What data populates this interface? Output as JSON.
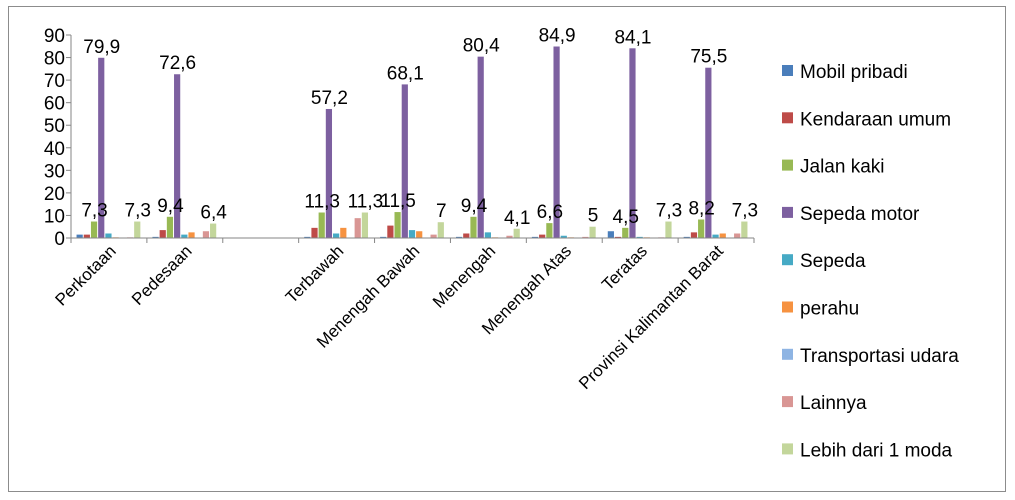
{
  "chart_data": {
    "type": "bar",
    "title": "",
    "xlabel": "",
    "ylabel": "",
    "ylim": [
      0,
      90
    ],
    "yticks": [
      0,
      10,
      20,
      30,
      40,
      50,
      60,
      70,
      80,
      90
    ],
    "grid": false,
    "legend_position": "right",
    "categories": [
      "Perkotaan",
      "Pedesaan",
      "",
      "Terbawah",
      "Menengah Bawah",
      "Menengah",
      "Menengah Atas",
      "Teratas",
      "Provinsi Kalimantan Barat"
    ],
    "series": [
      {
        "name": "Mobil pribadi",
        "color": "#4a7ebb",
        "values": [
          1.5,
          0.5,
          null,
          0.5,
          0.5,
          0.5,
          0.5,
          3.0,
          0.5
        ]
      },
      {
        "name": "Kendaraan umum",
        "color": "#be4b48",
        "values": [
          1.5,
          3.5,
          null,
          4.5,
          5.5,
          2.0,
          1.5,
          0.5,
          2.5
        ]
      },
      {
        "name": "Jalan kaki",
        "color": "#98b954",
        "values": [
          7.3,
          9.4,
          null,
          11.3,
          11.5,
          9.4,
          6.6,
          4.5,
          8.2
        ]
      },
      {
        "name": "Sepeda motor",
        "color": "#7d60a0",
        "values": [
          79.9,
          72.6,
          null,
          57.2,
          68.1,
          80.4,
          84.9,
          84.1,
          75.5
        ]
      },
      {
        "name": "Sepeda",
        "color": "#46aac5",
        "values": [
          2.0,
          1.5,
          null,
          2.0,
          3.5,
          2.5,
          1.0,
          0.5,
          1.5
        ]
      },
      {
        "name": "perahu",
        "color": "#f69240",
        "values": [
          0.3,
          2.5,
          null,
          4.5,
          3.0,
          0.3,
          0.3,
          0.3,
          2.0
        ]
      },
      {
        "name": "Transportasi udara",
        "color": "#8eb4e3",
        "values": [
          0.2,
          0.2,
          null,
          0.2,
          0.2,
          0.2,
          0.2,
          0.2,
          0.2
        ]
      },
      {
        "name": "Lainnya",
        "color": "#d99694",
        "values": [
          0.3,
          3.0,
          null,
          8.8,
          1.5,
          1.0,
          0.5,
          0.3,
          2.0
        ]
      },
      {
        "name": "Lebih dari 1 moda",
        "color": "#c3d69b",
        "values": [
          7.3,
          6.4,
          null,
          11.3,
          7.0,
          4.1,
          5.0,
          7.3,
          7.3
        ]
      }
    ],
    "data_labels": [
      {
        "category": 0,
        "series": 3,
        "text": "79,9"
      },
      {
        "category": 0,
        "series": 2,
        "text": "7,3"
      },
      {
        "category": 0,
        "series": 8,
        "text": "7,3"
      },
      {
        "category": 1,
        "series": 3,
        "text": "72,6"
      },
      {
        "category": 1,
        "series": 2,
        "text": "9,4"
      },
      {
        "category": 1,
        "series": 8,
        "text": "6,4"
      },
      {
        "category": 3,
        "series": 3,
        "text": "57,2"
      },
      {
        "category": 3,
        "series": 2,
        "text": "11,3"
      },
      {
        "category": 3,
        "series": 8,
        "text": "11,3"
      },
      {
        "category": 4,
        "series": 3,
        "text": "68,1"
      },
      {
        "category": 4,
        "series": 2,
        "text": "11,5"
      },
      {
        "category": 4,
        "series": 8,
        "text": "7"
      },
      {
        "category": 5,
        "series": 3,
        "text": "80,4"
      },
      {
        "category": 5,
        "series": 2,
        "text": "9,4"
      },
      {
        "category": 5,
        "series": 8,
        "text": "4,1"
      },
      {
        "category": 6,
        "series": 3,
        "text": "84,9"
      },
      {
        "category": 6,
        "series": 2,
        "text": "6,6"
      },
      {
        "category": 6,
        "series": 8,
        "text": "5"
      },
      {
        "category": 7,
        "series": 3,
        "text": "84,1"
      },
      {
        "category": 7,
        "series": 2,
        "text": "4,5"
      },
      {
        "category": 7,
        "series": 8,
        "text": "7,3"
      },
      {
        "category": 8,
        "series": 3,
        "text": "75,5"
      },
      {
        "category": 8,
        "series": 2,
        "text": "8,2"
      },
      {
        "category": 8,
        "series": 8,
        "text": "7,3"
      }
    ]
  }
}
